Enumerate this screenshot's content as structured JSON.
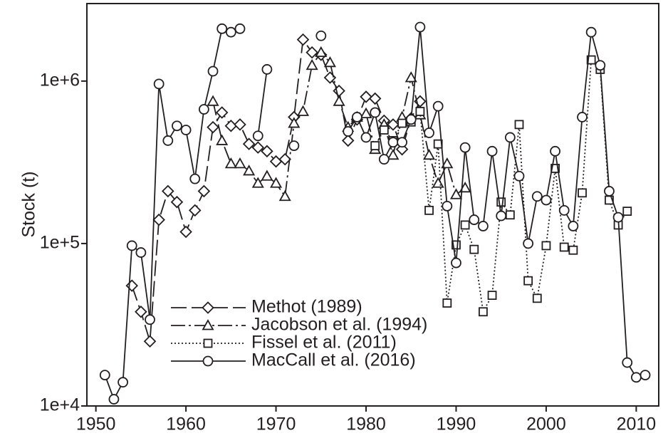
{
  "chart_data": {
    "type": "line",
    "ylabel": "Stock (t)",
    "log_y": true,
    "xlim": [
      1949,
      2012.5
    ],
    "xticks": [
      1950,
      1960,
      1970,
      1980,
      1990,
      2000,
      2010
    ],
    "ylim": [
      10000,
      3000000
    ],
    "yticks": [
      {
        "value": 10000,
        "label": "1e+4"
      },
      {
        "value": 100000,
        "label": "1e+5"
      },
      {
        "value": 1000000,
        "label": "1e+6"
      }
    ],
    "legend": "lower-left",
    "series": [
      {
        "name": "Methot (1989)",
        "color": "#231f20",
        "dash": "22 7",
        "marker": "diamond",
        "x": [
          1954,
          1955,
          1956,
          1957,
          1958,
          1959,
          1960,
          1961,
          1962,
          1963,
          1964,
          1965,
          1966,
          1967,
          1968,
          1969,
          1970,
          1971,
          1972,
          1973,
          1974,
          1975,
          1976,
          1977,
          1978,
          1979,
          1980,
          1981,
          1982,
          1983,
          1984,
          1985,
          1986
        ],
        "values": [
          55000,
          38000,
          25000,
          140000,
          210000,
          180000,
          118000,
          160000,
          210000,
          520000,
          640000,
          530000,
          540000,
          410000,
          390000,
          370000,
          320000,
          330000,
          600000,
          1800000,
          1500000,
          1450000,
          1050000,
          870000,
          430000,
          580000,
          800000,
          780000,
          570000,
          540000,
          380000,
          590000,
          750000
        ]
      },
      {
        "name": "Jacobson et al. (1994)",
        "color": "#231f20",
        "dash": "20 5 3 5",
        "marker": "triangle",
        "x": [
          1963,
          1964,
          1965,
          1966,
          1967,
          1968,
          1969,
          1970,
          1971,
          1972,
          1973,
          1974,
          1975,
          1976,
          1977,
          1978,
          1979,
          1980,
          1981,
          1982,
          1983,
          1984,
          1985,
          1986,
          1987,
          1988,
          1989,
          1990,
          1991
        ],
        "values": [
          750000,
          430000,
          310000,
          310000,
          280000,
          235000,
          260000,
          235000,
          195000,
          550000,
          650000,
          1250000,
          1500000,
          1300000,
          750000,
          520000,
          600000,
          630000,
          380000,
          540000,
          350000,
          600000,
          1050000,
          620000,
          350000,
          235000,
          310000,
          200000,
          220000
        ]
      },
      {
        "name": "Fissel et al. (2011)",
        "color": "#231f20",
        "dash": "2 3",
        "marker": "square",
        "x": [
          1981,
          1982,
          1983,
          1984,
          1985,
          1986,
          1987,
          1988,
          1989,
          1990,
          1991,
          1992,
          1993,
          1994,
          1995,
          1996,
          1997,
          1998,
          1999,
          2000,
          2001,
          2002,
          2003,
          2004,
          2005,
          2006,
          2007,
          2008,
          2009
        ],
        "values": [
          400000,
          500000,
          430000,
          550000,
          560000,
          650000,
          160000,
          410000,
          43000,
          98000,
          130000,
          92000,
          38000,
          48000,
          180000,
          150000,
          540000,
          59000,
          46000,
          97000,
          290000,
          95000,
          91000,
          205000,
          1350000,
          1180000,
          185000,
          130000,
          158000
        ]
      },
      {
        "name": "MacCall et al. (2016)",
        "color": "#231f20",
        "dash": "none",
        "marker": "circle",
        "x": [
          1951,
          1952,
          1953,
          1954,
          1955,
          1956,
          1957,
          1958,
          1959,
          1960,
          1961,
          1962,
          1963,
          1964,
          1965,
          1966,
          1967,
          1968,
          1969,
          1970,
          1971,
          1972,
          1973,
          1974,
          1975,
          1976,
          1977,
          1978,
          1979,
          1980,
          1981,
          1982,
          1983,
          1984,
          1985,
          1986,
          1987,
          1988,
          1989,
          1990,
          1991,
          1992,
          1993,
          1994,
          1995,
          1996,
          1997,
          1998,
          1999,
          2000,
          2001,
          2002,
          2003,
          2004,
          2005,
          2006,
          2007,
          2008,
          2009,
          2010,
          2011
        ],
        "values": [
          15500,
          11000,
          14000,
          97000,
          88000,
          34000,
          960000,
          430000,
          530000,
          500000,
          250000,
          670000,
          1150000,
          2100000,
          2000000,
          2100000,
          null,
          460000,
          1180000,
          null,
          null,
          400000,
          null,
          null,
          1900000,
          null,
          null,
          490000,
          600000,
          450000,
          640000,
          330000,
          420000,
          420000,
          580000,
          2150000,
          480000,
          700000,
          170000,
          76000,
          390000,
          140000,
          128000,
          370000,
          148000,
          450000,
          260000,
          100000,
          195000,
          185000,
          370000,
          160000,
          128000,
          600000,
          2000000,
          1250000,
          210000,
          145000,
          18500,
          15000,
          15500
        ]
      }
    ]
  }
}
